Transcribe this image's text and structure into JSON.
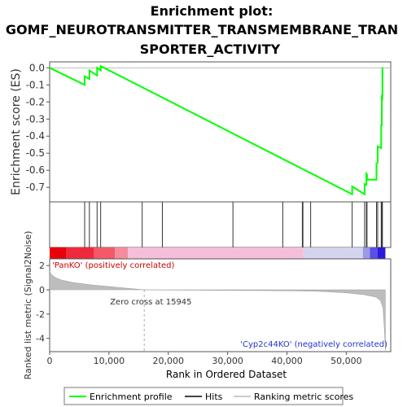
{
  "chart_data": {
    "type": "line",
    "title_lines": [
      "Enrichment plot:",
      "GOMF_NEUROTRANSMITTER_TRANSMEMBRANE_TRAN",
      "SPORTER_ACTIVITY"
    ],
    "ylabel_top": "Enrichment score (ES)",
    "ylabel_bottom": "Ranked list metric (Signal2Noise)",
    "xlabel": "Rank in Ordered Dataset",
    "xlim": [
      0,
      57500
    ],
    "es_ylim": [
      -0.785,
      0.035
    ],
    "es_yticks": [
      0.0,
      -0.1,
      -0.2,
      -0.3,
      -0.4,
      -0.5,
      -0.6,
      -0.7
    ],
    "es_ytick_labels": [
      "0.0",
      "-0.1",
      "-0.2",
      "-0.3",
      "-0.4",
      "-0.5",
      "-0.6",
      "-0.7"
    ],
    "metric_ylim": [
      -5.1,
      2.55
    ],
    "metric_yticks": [
      2,
      0,
      -2,
      -4
    ],
    "metric_ytick_labels": [
      "2",
      "0",
      "-2",
      "-4"
    ],
    "xticks": [
      0,
      10000,
      20000,
      30000,
      40000,
      50000
    ],
    "xtick_labels": [
      "0",
      "10,000",
      "20,000",
      "30,000",
      "40,000",
      "50,000"
    ],
    "series": [
      {
        "name": "Enrichment profile",
        "color": "#00ff00",
        "x": [
          0,
          5900,
          5900,
          6700,
          6700,
          8000,
          8000,
          8600,
          8600,
          51000,
          51000,
          53100,
          53100,
          53400,
          53400,
          53500,
          53500,
          55100,
          55100,
          55300,
          55300,
          55900,
          55900,
          56000,
          56000,
          56100,
          56100,
          56200
        ],
        "y": [
          0.0,
          -0.1,
          -0.05,
          -0.065,
          -0.015,
          -0.045,
          0.0,
          -0.015,
          0.01,
          -0.74,
          -0.695,
          -0.74,
          -0.68,
          -0.685,
          -0.62,
          -0.625,
          -0.655,
          -0.655,
          -0.56,
          -0.555,
          -0.46,
          -0.47,
          -0.335,
          -0.335,
          -0.17,
          -0.175,
          0.0,
          0.0
        ]
      }
    ],
    "hits_x": [
      5900,
      6700,
      8000,
      8600,
      15600,
      19000,
      30900,
      39300,
      42600,
      42700,
      44000,
      51000,
      53100,
      53400,
      53500,
      55100,
      55300,
      55900,
      56000,
      56100
    ],
    "hits_label": "Hits",
    "metric_label": "Ranking metric scores",
    "metric_profile": {
      "x": [
        0,
        300,
        1000,
        2000,
        4000,
        7000,
        10000,
        13000,
        15945,
        20000,
        30000,
        40000,
        45000,
        50000,
        53000,
        55000,
        55800,
        56200,
        56400,
        56600
      ],
      "y": [
        1.55,
        1.25,
        1.0,
        0.8,
        0.6,
        0.4,
        0.27,
        0.13,
        0.0,
        -0.02,
        -0.05,
        -0.08,
        -0.12,
        -0.25,
        -0.4,
        -0.6,
        -0.9,
        -1.5,
        -3.0,
        -5.0
      ]
    },
    "color_band": {
      "segments": [
        {
          "x0": 0,
          "x1": 2800,
          "color": "#e8000a"
        },
        {
          "x0": 2800,
          "x1": 7500,
          "color": "#ee2a3a"
        },
        {
          "x0": 7500,
          "x1": 11000,
          "color": "#f25a6a"
        },
        {
          "x0": 11000,
          "x1": 13200,
          "color": "#f58c9c"
        },
        {
          "x0": 13200,
          "x1": 42800,
          "color": "#f5bfd9"
        },
        {
          "x0": 42800,
          "x1": 52800,
          "color": "#d4d4ef"
        },
        {
          "x0": 52800,
          "x1": 54000,
          "color": "#9a9ae6"
        },
        {
          "x0": 54000,
          "x1": 55300,
          "color": "#5a50e6"
        },
        {
          "x0": 55300,
          "x1": 56600,
          "color": "#2a1cd8"
        }
      ]
    },
    "annotations": {
      "pos_label": "'PanKO' (positively correlated)",
      "neg_label": "'Cyp2c44KO' (negatively correlated)",
      "zero_cross": "Zero cross at 15945",
      "zero_cross_x": 15945
    },
    "legend": {
      "position": "bottom",
      "items": [
        "Enrichment profile",
        "Hits",
        "Ranking metric scores"
      ]
    },
    "grid": false
  }
}
